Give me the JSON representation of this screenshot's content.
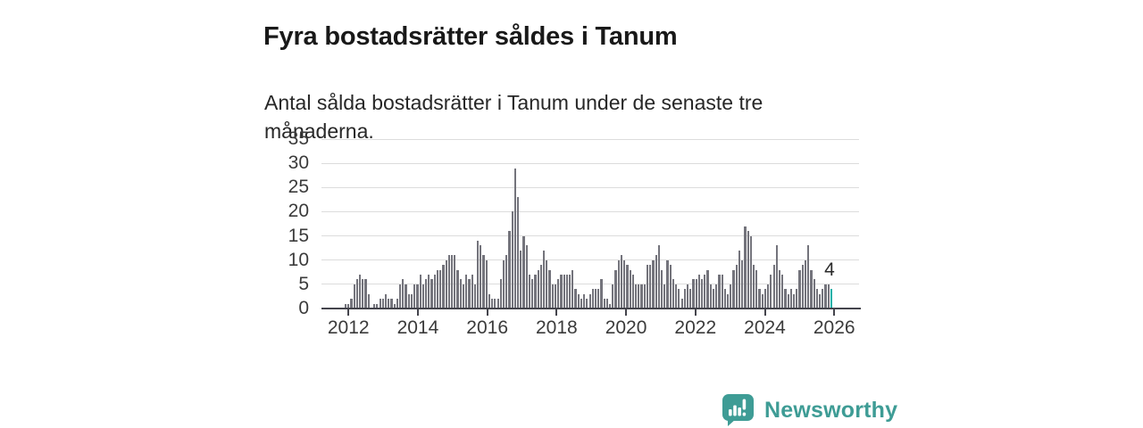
{
  "header": {
    "title": "Fyra bostadsrätter såldes i Tanum",
    "subtitle": "Antal sålda bostadsrätter i Tanum under de senaste tre månaderna."
  },
  "annotation": {
    "last_value_label": "4"
  },
  "branding": {
    "name": "Newsworthy",
    "icon": "newsworthy-chart-bubble-icon",
    "color": "#3e9c95"
  },
  "chart_data": {
    "type": "bar",
    "title": "Fyra bostadsrätter såldes i Tanum",
    "subtitle": "Antal sålda bostadsrätter i Tanum under de senaste tre månaderna.",
    "frequency": "monthly",
    "x_start": "2011-12",
    "x_end": "2026-01",
    "xlabel": "",
    "ylabel": "",
    "ylim": [
      0,
      35
    ],
    "yticks": [
      0,
      5,
      10,
      15,
      20,
      25,
      30,
      35
    ],
    "xticks": [
      2012,
      2014,
      2016,
      2018,
      2020,
      2022,
      2024,
      2026
    ],
    "grid": "horizontal",
    "legend": "none",
    "bar_color": "#74747c",
    "highlight_color": "#14b1a9",
    "highlight_last_bar": true,
    "last_value_label": "4",
    "values": [
      1,
      1,
      2,
      5,
      6,
      7,
      6,
      6,
      3,
      0,
      1,
      1,
      2,
      2,
      3,
      2,
      2,
      1,
      2,
      5,
      6,
      5,
      3,
      3,
      5,
      5,
      7,
      5,
      6,
      7,
      6,
      7,
      8,
      8,
      9,
      10,
      11,
      11,
      11,
      8,
      6,
      5,
      7,
      6,
      7,
      5,
      14,
      13,
      11,
      10,
      3,
      2,
      2,
      2,
      6,
      10,
      11,
      16,
      20,
      29,
      23,
      12,
      15,
      13,
      7,
      6,
      7,
      8,
      9,
      12,
      10,
      8,
      5,
      5,
      6,
      7,
      7,
      7,
      7,
      8,
      4,
      3,
      2,
      3,
      2,
      3,
      4,
      4,
      4,
      6,
      2,
      2,
      1,
      5,
      8,
      10,
      11,
      10,
      9,
      8,
      7,
      5,
      5,
      5,
      5,
      9,
      9,
      10,
      11,
      13,
      8,
      5,
      10,
      9,
      6,
      5,
      4,
      2,
      4,
      5,
      4,
      6,
      6,
      7,
      6,
      7,
      8,
      5,
      4,
      5,
      7,
      7,
      4,
      3,
      5,
      8,
      9,
      12,
      10,
      17,
      16,
      15,
      9,
      8,
      4,
      3,
      4,
      5,
      7,
      9,
      13,
      8,
      7,
      4,
      3,
      4,
      3,
      4,
      8,
      9,
      10,
      13,
      8,
      6,
      4,
      3,
      4,
      5,
      5,
      4
    ]
  }
}
